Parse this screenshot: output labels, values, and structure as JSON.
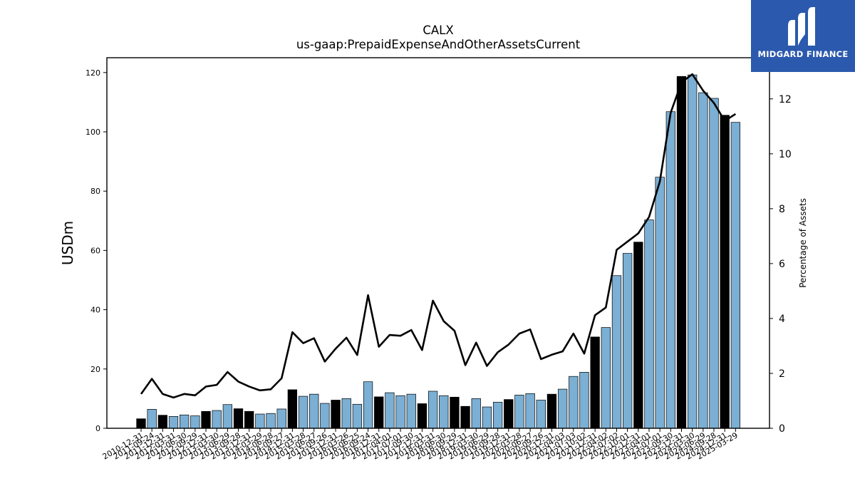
{
  "chart_data": {
    "type": "bar",
    "title": "CALX",
    "subtitle": "us-gaap:PrepaidExpenseAndOtherAssetsCurrent",
    "ylabel": "USDm",
    "y2label": "Percentage of Assets",
    "ylim": [
      0,
      125
    ],
    "y2lim": [
      0,
      13.5
    ],
    "yticks": [
      0,
      20,
      40,
      60,
      80,
      100,
      120
    ],
    "y2ticks": [
      0,
      2,
      4,
      6,
      8,
      10,
      12
    ],
    "categories": [
      "2010-12-31",
      "2011-09-24",
      "2011-12-31",
      "2012-03-31",
      "2012-06-30",
      "2012-09-29",
      "2012-12-31",
      "2013-03-30",
      "2013-06-29",
      "2013-09-28",
      "2013-12-31",
      "2014-03-29",
      "2014-06-28",
      "2014-09-27",
      "2014-12-31",
      "2015-03-28",
      "2015-06-27",
      "2015-09-26",
      "2015-12-31",
      "2016-03-26",
      "2016-06-25",
      "2016-09-24",
      "2016-12-31",
      "2017-04-01",
      "2017-07-01",
      "2017-09-30",
      "2017-12-31",
      "2018-03-31",
      "2018-06-30",
      "2018-09-29",
      "2018-12-31",
      "2019-03-30",
      "2019-06-29",
      "2019-09-28",
      "2019-12-31",
      "2020-03-28",
      "2020-06-27",
      "2020-09-26",
      "2020-12-31",
      "2021-04-03",
      "2021-07-03",
      "2021-10-02",
      "2021-12-31",
      "2022-04-02",
      "2022-07-02",
      "2022-10-01",
      "2022-12-31",
      "2023-04-01",
      "2023-07-01",
      "2023-09-30",
      "2023-12-31",
      "2024-03-30",
      "2024-06-29",
      "2024-09-28",
      "2024-12-31",
      "2025-03-29"
    ],
    "series": [
      {
        "values": [
          3.2,
          6.4,
          4.4,
          4.0,
          4.5,
          4.2,
          5.7,
          6.0,
          8.0,
          6.6,
          5.7,
          4.8,
          5.0,
          6.5,
          13.0,
          10.8,
          11.5,
          8.4,
          9.5,
          10.0,
          8.1,
          15.7,
          10.6,
          12.0,
          11.0,
          11.5,
          8.3,
          12.5,
          11.0,
          10.5,
          7.4,
          10.0,
          7.2,
          8.8,
          9.7,
          11.2,
          11.7,
          9.5,
          11.5,
          13.2,
          17.5,
          18.9,
          30.8,
          34.0,
          51.5,
          59.0,
          62.8,
          70.3,
          84.7,
          106.8,
          118.7,
          119.2,
          113.2,
          111.3,
          105.6,
          103.2
        ],
        "annual": [
          true,
          false,
          true,
          false,
          false,
          false,
          true,
          false,
          false,
          true,
          true,
          false,
          false,
          false,
          true,
          false,
          false,
          false,
          true,
          false,
          false,
          false,
          true,
          false,
          false,
          false,
          true,
          false,
          false,
          true,
          true,
          false,
          false,
          false,
          true,
          false,
          false,
          false,
          true,
          false,
          false,
          false,
          true,
          false,
          false,
          false,
          true,
          false,
          false,
          false,
          true,
          false,
          false,
          false,
          true,
          false
        ]
      },
      {
        "axis": "right",
        "values": [
          1.25,
          1.8,
          1.25,
          1.12,
          1.25,
          1.2,
          1.52,
          1.58,
          2.05,
          1.7,
          1.52,
          1.38,
          1.42,
          1.82,
          3.5,
          3.1,
          3.28,
          2.43,
          2.9,
          3.3,
          2.67,
          4.85,
          2.97,
          3.4,
          3.37,
          3.58,
          2.85,
          4.65,
          3.9,
          3.55,
          2.3,
          3.12,
          2.27,
          2.77,
          3.05,
          3.45,
          3.6,
          2.52,
          2.68,
          2.8,
          3.45,
          2.72,
          4.12,
          4.4,
          6.5,
          6.8,
          7.1,
          7.7,
          9.0,
          11.5,
          12.6,
          12.9,
          12.3,
          11.85,
          11.2,
          11.45
        ]
      }
    ],
    "colors": {
      "annual_bar": "#000000",
      "quarter_bar": "#7bafd4",
      "line": "#000000",
      "logo_bg": "#2a59ad"
    }
  },
  "logo": {
    "text": "MIDGARD FINANCE"
  }
}
